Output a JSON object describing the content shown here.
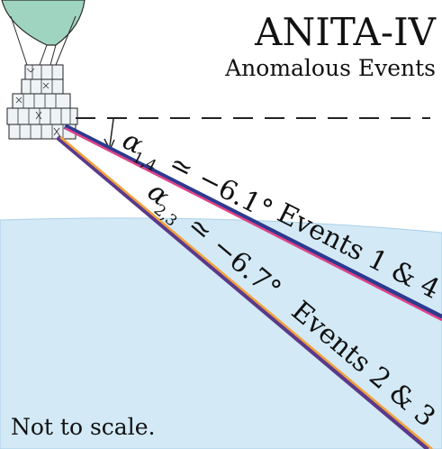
{
  "title": "ANITA-IV",
  "subtitle": "Anomalous Events",
  "footnote": "Not to scale.",
  "angle_14": {
    "text": "α₁,₄ ≃ −6.1°",
    "alpha": "α",
    "subscript": "1,4",
    "relation": "≃",
    "value": "−6.1°"
  },
  "angle_23": {
    "text": "α₂,₃ ≃ −6.7°",
    "alpha": "α",
    "subscript": "2,3",
    "relation": "≃",
    "value": "−6.7°"
  },
  "events_14_label": "Events 1 & 4",
  "events_23_label": "Events 2 & 3",
  "colors": {
    "balloon": "#9fd4c0",
    "ice": "#d3e9f6",
    "ice_edge": "#a9d0ea",
    "ray_14_outer": "#2b3b8e",
    "ray_14_inner": "#e0428a",
    "ray_23_outer": "#5a3a8a",
    "ray_23_inner": "#f2a23a",
    "dashes": "#222222"
  },
  "icons": [
    "balloon-icon",
    "payload-icon",
    "angle-arrow-icon"
  ]
}
